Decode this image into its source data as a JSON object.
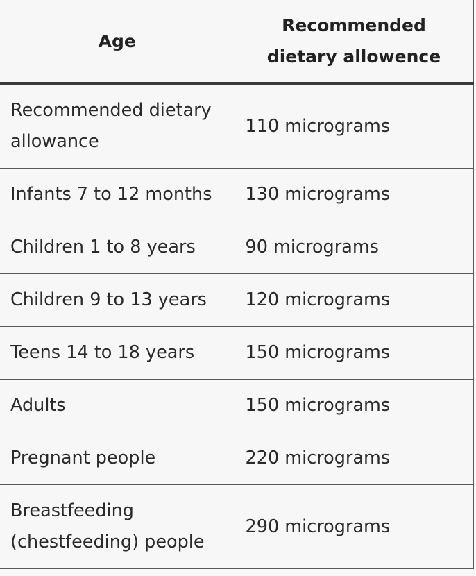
{
  "table": {
    "headers": {
      "age": "Age",
      "rda": "Recommended dietary allowence"
    },
    "rows": [
      {
        "age": "Recommended dietary allowance",
        "rda": "110 micrograms"
      },
      {
        "age": "Infants 7 to 12 months",
        "rda": "130 micrograms"
      },
      {
        "age": "Children 1 to 8 years",
        "rda": "90 micrograms"
      },
      {
        "age": "Children 9 to 13 years",
        "rda": "120 micrograms"
      },
      {
        "age": "Teens 14 to 18 years",
        "rda": "150 micrograms"
      },
      {
        "age": "Adults",
        "rda": "150 micrograms"
      },
      {
        "age": "Pregnant people",
        "rda": "220 micrograms"
      },
      {
        "age": "Breastfeeding (chestfeeding) people",
        "rda": "290 micrograms"
      }
    ]
  }
}
